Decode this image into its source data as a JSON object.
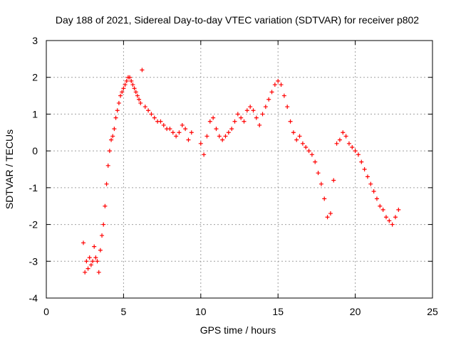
{
  "chart_data": {
    "type": "scatter",
    "title": "Day 188 of 2021, Sidereal Day-to-day VTEC variation (SDTVAR) for receiver p802",
    "xlabel": "GPS time / hours",
    "ylabel": "SDTVAR / TECUs",
    "xlim": [
      0,
      25
    ],
    "ylim": [
      -4,
      3
    ],
    "xticks": [
      0,
      5,
      10,
      15,
      20,
      25
    ],
    "yticks": [
      -4,
      -3,
      -2,
      -1,
      0,
      1,
      2,
      3
    ],
    "xtick_labels": [
      "0",
      "5",
      "10",
      "15",
      "20",
      "25"
    ],
    "ytick_labels": [
      "-4",
      "-3",
      "-2",
      "-1",
      "0",
      "1",
      "2",
      "3"
    ],
    "grid": true,
    "marker": "+",
    "series": [
      {
        "name": "SDTVAR",
        "color": "#ff0000",
        "x": [
          2.4,
          2.5,
          2.6,
          2.7,
          2.8,
          2.9,
          3.0,
          3.1,
          3.2,
          3.3,
          3.4,
          3.5,
          3.6,
          3.7,
          3.8,
          3.9,
          4.0,
          4.1,
          4.2,
          4.3,
          4.4,
          4.5,
          4.6,
          4.7,
          4.8,
          4.9,
          5.0,
          5.1,
          5.2,
          5.3,
          5.4,
          5.5,
          5.6,
          5.7,
          5.8,
          5.9,
          6.0,
          6.1,
          6.2,
          6.4,
          6.6,
          6.8,
          7.0,
          7.2,
          7.4,
          7.6,
          7.8,
          8.0,
          8.2,
          8.4,
          8.6,
          8.8,
          9.0,
          9.2,
          9.4,
          10.0,
          10.2,
          10.4,
          10.6,
          10.8,
          11.0,
          11.2,
          11.4,
          11.6,
          11.8,
          12.0,
          12.2,
          12.4,
          12.6,
          12.8,
          13.0,
          13.2,
          13.4,
          13.6,
          13.8,
          14.0,
          14.2,
          14.4,
          14.6,
          14.8,
          15.0,
          15.2,
          15.4,
          15.6,
          15.8,
          16.0,
          16.2,
          16.4,
          16.6,
          16.8,
          17.0,
          17.2,
          17.4,
          17.6,
          17.8,
          18.0,
          18.2,
          18.4,
          18.6,
          18.8,
          19.0,
          19.2,
          19.4,
          19.6,
          19.8,
          20.0,
          20.2,
          20.4,
          20.6,
          20.8,
          21.0,
          21.2,
          21.4,
          21.6,
          21.8,
          22.0,
          22.2,
          22.4,
          22.6,
          22.8
        ],
        "y": [
          -2.5,
          -3.3,
          -3.0,
          -3.2,
          -2.9,
          -3.1,
          -3.0,
          -2.6,
          -2.9,
          -3.0,
          -3.3,
          -2.7,
          -2.3,
          -2.0,
          -1.5,
          -0.9,
          -0.4,
          0.0,
          0.3,
          0.4,
          0.6,
          0.9,
          1.1,
          1.3,
          1.5,
          1.6,
          1.7,
          1.8,
          1.9,
          2.0,
          2.0,
          1.9,
          1.8,
          1.7,
          1.6,
          1.5,
          1.4,
          1.3,
          2.2,
          1.2,
          1.1,
          1.0,
          0.9,
          0.8,
          0.8,
          0.7,
          0.6,
          0.6,
          0.5,
          0.4,
          0.5,
          0.7,
          0.6,
          0.3,
          0.5,
          0.2,
          -0.1,
          0.4,
          0.8,
          0.9,
          0.6,
          0.4,
          0.3,
          0.4,
          0.5,
          0.6,
          0.8,
          1.0,
          0.9,
          0.8,
          1.1,
          1.2,
          1.1,
          0.9,
          0.7,
          1.0,
          1.2,
          1.4,
          1.6,
          1.8,
          1.9,
          1.8,
          1.5,
          1.2,
          0.8,
          0.5,
          0.3,
          0.4,
          0.2,
          0.1,
          0.0,
          -0.1,
          -0.3,
          -0.6,
          -0.9,
          -1.3,
          -1.8,
          -1.7,
          -0.8,
          0.2,
          0.3,
          0.5,
          0.4,
          0.2,
          0.1,
          0.0,
          -0.1,
          -0.3,
          -0.5,
          -0.7,
          -0.9,
          -1.1,
          -1.3,
          -1.5,
          -1.6,
          -1.8,
          -1.9,
          -2.0,
          -1.8,
          -1.6
        ]
      }
    ]
  }
}
